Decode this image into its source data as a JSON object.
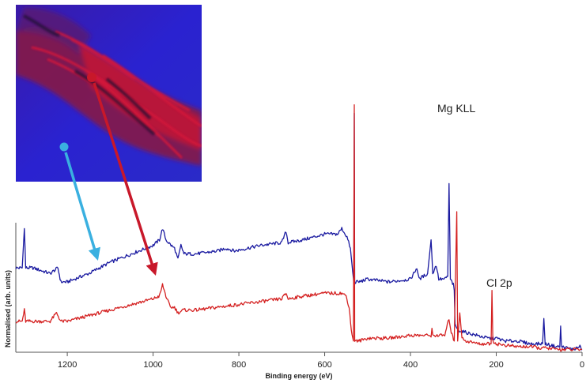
{
  "chart_data": {
    "type": "line",
    "title": "",
    "xlabel": "Binding energy (eV)",
    "ylabel": "Normalised (arb. units)",
    "xlim": [
      1320,
      0
    ],
    "x_reversed": true,
    "ylim": [
      0,
      1
    ],
    "x_ticks": [
      1200,
      1000,
      800,
      600,
      400,
      200,
      0
    ],
    "x_tick_labels": [
      "1200",
      "1000",
      "800",
      "600",
      "400",
      "200",
      "0"
    ],
    "grid": false,
    "legend": "none",
    "annotations": [
      {
        "text": "Mg KLL",
        "x": 300,
        "y": 0.7
      },
      {
        "text": "Cl 2p",
        "x": 200,
        "y": 0.22
      }
    ],
    "series": [
      {
        "color": "#1a1aa0",
        "points": [
          [
            1320,
            0.3
          ],
          [
            1305,
            0.3
          ],
          [
            1300,
            0.44
          ],
          [
            1297,
            0.3
          ],
          [
            1280,
            0.3
          ],
          [
            1240,
            0.28
          ],
          [
            1222,
            0.3
          ],
          [
            1215,
            0.25
          ],
          [
            1200,
            0.25
          ],
          [
            1150,
            0.28
          ],
          [
            1100,
            0.32
          ],
          [
            1050,
            0.35
          ],
          [
            1000,
            0.38
          ],
          [
            985,
            0.4
          ],
          [
            978,
            0.44
          ],
          [
            970,
            0.4
          ],
          [
            958,
            0.38
          ],
          [
            950,
            0.37
          ],
          [
            942,
            0.33
          ],
          [
            935,
            0.38
          ],
          [
            928,
            0.35
          ],
          [
            900,
            0.35
          ],
          [
            850,
            0.36
          ],
          [
            830,
            0.37
          ],
          [
            810,
            0.36
          ],
          [
            750,
            0.38
          ],
          [
            700,
            0.39
          ],
          [
            690,
            0.43
          ],
          [
            685,
            0.39
          ],
          [
            650,
            0.4
          ],
          [
            600,
            0.42
          ],
          [
            570,
            0.42
          ],
          [
            560,
            0.44
          ],
          [
            548,
            0.41
          ],
          [
            540,
            0.37
          ],
          [
            533,
            0.26
          ],
          [
            528,
            0.25
          ],
          [
            532,
            0.24
          ],
          [
            531,
            0.85
          ],
          [
            530,
            0.25
          ],
          [
            520,
            0.25
          ],
          [
            500,
            0.26
          ],
          [
            450,
            0.25
          ],
          [
            400,
            0.26
          ],
          [
            385,
            0.3
          ],
          [
            380,
            0.26
          ],
          [
            360,
            0.28
          ],
          [
            352,
            0.4
          ],
          [
            348,
            0.28
          ],
          [
            340,
            0.31
          ],
          [
            334,
            0.26
          ],
          [
            320,
            0.26
          ],
          [
            313,
            0.27
          ],
          [
            310,
            0.6
          ],
          [
            307,
            0.26
          ],
          [
            300,
            0.24
          ],
          [
            298,
            0.22
          ],
          [
            296,
            0.1
          ],
          [
            290,
            0.08
          ],
          [
            270,
            0.07
          ],
          [
            220,
            0.05
          ],
          [
            200,
            0.05
          ],
          [
            180,
            0.04
          ],
          [
            150,
            0.04
          ],
          [
            120,
            0.03
          ],
          [
            92,
            0.03
          ],
          [
            89,
            0.12
          ],
          [
            86,
            0.03
          ],
          [
            60,
            0.02
          ],
          [
            52,
            0.02
          ],
          [
            50,
            0.09
          ],
          [
            48,
            0.02
          ],
          [
            20,
            0.01
          ],
          [
            5,
            0.02
          ],
          [
            0,
            0.01
          ]
        ]
      },
      {
        "color": "#d42020",
        "points": [
          [
            1320,
            0.11
          ],
          [
            1305,
            0.11
          ],
          [
            1300,
            0.15
          ],
          [
            1297,
            0.11
          ],
          [
            1280,
            0.11
          ],
          [
            1240,
            0.11
          ],
          [
            1225,
            0.14
          ],
          [
            1215,
            0.11
          ],
          [
            1200,
            0.11
          ],
          [
            1150,
            0.13
          ],
          [
            1100,
            0.15
          ],
          [
            1050,
            0.17
          ],
          [
            1000,
            0.19
          ],
          [
            985,
            0.2
          ],
          [
            978,
            0.24
          ],
          [
            970,
            0.2
          ],
          [
            960,
            0.16
          ],
          [
            950,
            0.16
          ],
          [
            942,
            0.14
          ],
          [
            930,
            0.15
          ],
          [
            900,
            0.15
          ],
          [
            850,
            0.16
          ],
          [
            800,
            0.17
          ],
          [
            750,
            0.18
          ],
          [
            700,
            0.19
          ],
          [
            690,
            0.21
          ],
          [
            685,
            0.19
          ],
          [
            650,
            0.2
          ],
          [
            600,
            0.21
          ],
          [
            560,
            0.21
          ],
          [
            550,
            0.2
          ],
          [
            543,
            0.16
          ],
          [
            538,
            0.08
          ],
          [
            533,
            0.04
          ],
          [
            531,
            0.88
          ],
          [
            530,
            0.04
          ],
          [
            520,
            0.04
          ],
          [
            500,
            0.05
          ],
          [
            450,
            0.05
          ],
          [
            400,
            0.06
          ],
          [
            352,
            0.06
          ],
          [
            350,
            0.08
          ],
          [
            348,
            0.06
          ],
          [
            320,
            0.06
          ],
          [
            310,
            0.12
          ],
          [
            305,
            0.07
          ],
          [
            298,
            0.04
          ],
          [
            292,
            0.5
          ],
          [
            290,
            0.04
          ],
          [
            285,
            0.14
          ],
          [
            280,
            0.05
          ],
          [
            270,
            0.04
          ],
          [
            240,
            0.03
          ],
          [
            212,
            0.03
          ],
          [
            210,
            0.22
          ],
          [
            208,
            0.04
          ],
          [
            200,
            0.03
          ],
          [
            180,
            0.025
          ],
          [
            150,
            0.02
          ],
          [
            120,
            0.02
          ],
          [
            100,
            0.015
          ],
          [
            80,
            0.015
          ],
          [
            60,
            0.01
          ],
          [
            40,
            0.01
          ],
          [
            20,
            0.01
          ],
          [
            0,
            0.01
          ]
        ]
      }
    ],
    "inset": {
      "type": "false-color-image",
      "colors": [
        "#2a1fc8",
        "#b01835"
      ],
      "markers": [
        {
          "color": "#3ab0e0",
          "target_series": 0
        },
        {
          "color": "#c8182a",
          "target_series": 1
        }
      ]
    }
  }
}
